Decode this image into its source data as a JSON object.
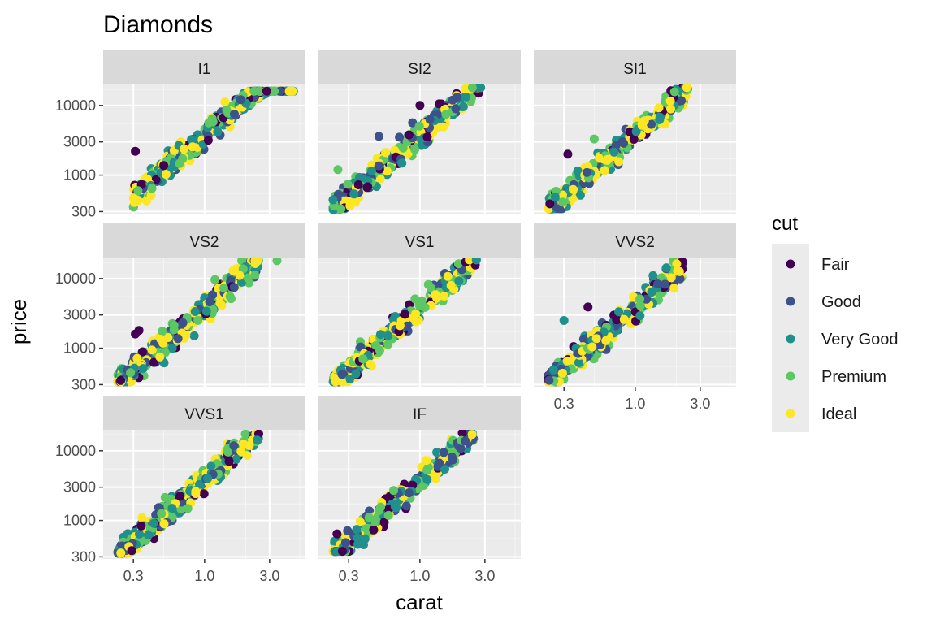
{
  "chart_data": {
    "type": "scatter",
    "title": "Diamonds",
    "xlabel": "carat",
    "ylabel": "price",
    "x_scale": "log10",
    "y_scale": "log10",
    "xlim": [
      0.18,
      5.5
    ],
    "ylim": [
      280,
      20000
    ],
    "x_ticks": [
      0.3,
      1.0,
      3.0
    ],
    "x_tick_labels": [
      "0.3",
      "1.0",
      "3.0"
    ],
    "y_ticks": [
      300,
      1000,
      3000,
      10000
    ],
    "y_tick_labels": [
      "300",
      "1000",
      "3000",
      "10000"
    ],
    "grid": true,
    "legend": {
      "title": "cut",
      "placement": "right",
      "entries": [
        {
          "label": "Fair",
          "color": "#440154"
        },
        {
          "label": "Good",
          "color": "#3B528B"
        },
        {
          "label": "Very Good",
          "color": "#21908C"
        },
        {
          "label": "Premium",
          "color": "#5DC863"
        },
        {
          "label": "Ideal",
          "color": "#FDE725"
        }
      ]
    },
    "facets": [
      {
        "label": "I1",
        "carat_range": [
          0.3,
          4.5
        ],
        "price_range": [
          350,
          16000
        ],
        "outliers": [
          {
            "x": 0.31,
            "y": 2200,
            "cut": "Fair"
          }
        ]
      },
      {
        "label": "SI2",
        "carat_range": [
          0.23,
          2.8
        ],
        "price_range": [
          320,
          18000
        ],
        "outliers": [
          {
            "x": 1.0,
            "y": 10000,
            "cut": "Fair"
          },
          {
            "x": 0.5,
            "y": 3600,
            "cut": "Good"
          },
          {
            "x": 0.25,
            "y": 1200,
            "cut": "Premium"
          }
        ]
      },
      {
        "label": "SI1",
        "carat_range": [
          0.23,
          2.5
        ],
        "price_range": [
          330,
          18000
        ],
        "outliers": [
          {
            "x": 0.32,
            "y": 2000,
            "cut": "Fair"
          },
          {
            "x": 0.5,
            "y": 3300,
            "cut": "Premium"
          }
        ]
      },
      {
        "label": "VS2",
        "carat_range": [
          0.23,
          2.5
        ],
        "price_range": [
          330,
          18000
        ],
        "outliers": [
          {
            "x": 3.4,
            "y": 18000,
            "cut": "Premium"
          },
          {
            "x": 0.33,
            "y": 1800,
            "cut": "Fair"
          },
          {
            "x": 0.31,
            "y": 1600,
            "cut": "Fair"
          }
        ]
      },
      {
        "label": "VS1",
        "carat_range": [
          0.23,
          2.6
        ],
        "price_range": [
          330,
          18500
        ],
        "outliers": []
      },
      {
        "label": "VVS2",
        "carat_range": [
          0.23,
          2.3
        ],
        "price_range": [
          330,
          18500
        ],
        "outliers": [
          {
            "x": 0.3,
            "y": 2500,
            "cut": "Very Good"
          },
          {
            "x": 0.45,
            "y": 3900,
            "cut": "Fair"
          }
        ]
      },
      {
        "label": "VVS1",
        "carat_range": [
          0.23,
          2.5
        ],
        "price_range": [
          340,
          17500
        ],
        "outliers": []
      },
      {
        "label": "IF",
        "carat_range": [
          0.23,
          2.5
        ],
        "price_range": [
          360,
          18000
        ],
        "outliers": []
      }
    ]
  }
}
